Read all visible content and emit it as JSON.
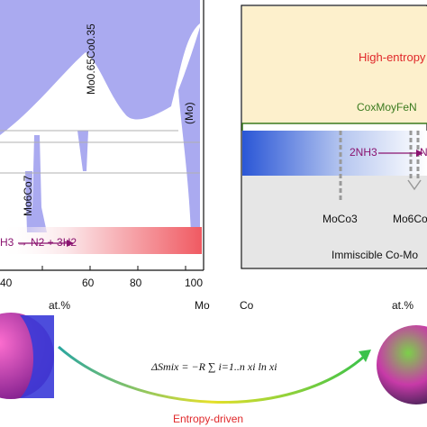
{
  "left_panel": {
    "phases": {
      "mo065co035": "Mo0.65Co0.35",
      "mo6co7": "Mo6Co7",
      "mo": "(Mo)"
    },
    "reaction": "H3 → N2 + 3H2",
    "x_ticks": [
      "40",
      "60",
      "80",
      "100"
    ],
    "x_unit": "at.%",
    "x_end_element": "Mo"
  },
  "right_panel": {
    "region_top": "High-entropy",
    "alloy_formula": "CoxMoyFeN",
    "reaction": "2NH3",
    "reaction_product_fragment": "N",
    "phases": [
      "MoCo3",
      "Mo6Co"
    ],
    "region_bottom": "Immiscible Co-Mo",
    "x_start_element": "Co",
    "x_unit": "at.%"
  },
  "bottom": {
    "equation": "ΔSmix = −R ∑ i=1..n xi ln xi",
    "arrow_label": "Entropy-driven"
  },
  "colors": {
    "phase_fill": "#aaaaf0",
    "entropy_band": "#fdf0cc",
    "immiscible_band": "#e6e6e6",
    "blue_gradient": "#2a5ad8",
    "red_gradient": "#f05a5a",
    "bracket_green": "#3a7a1e",
    "reaction_purple": "#8a1470"
  }
}
